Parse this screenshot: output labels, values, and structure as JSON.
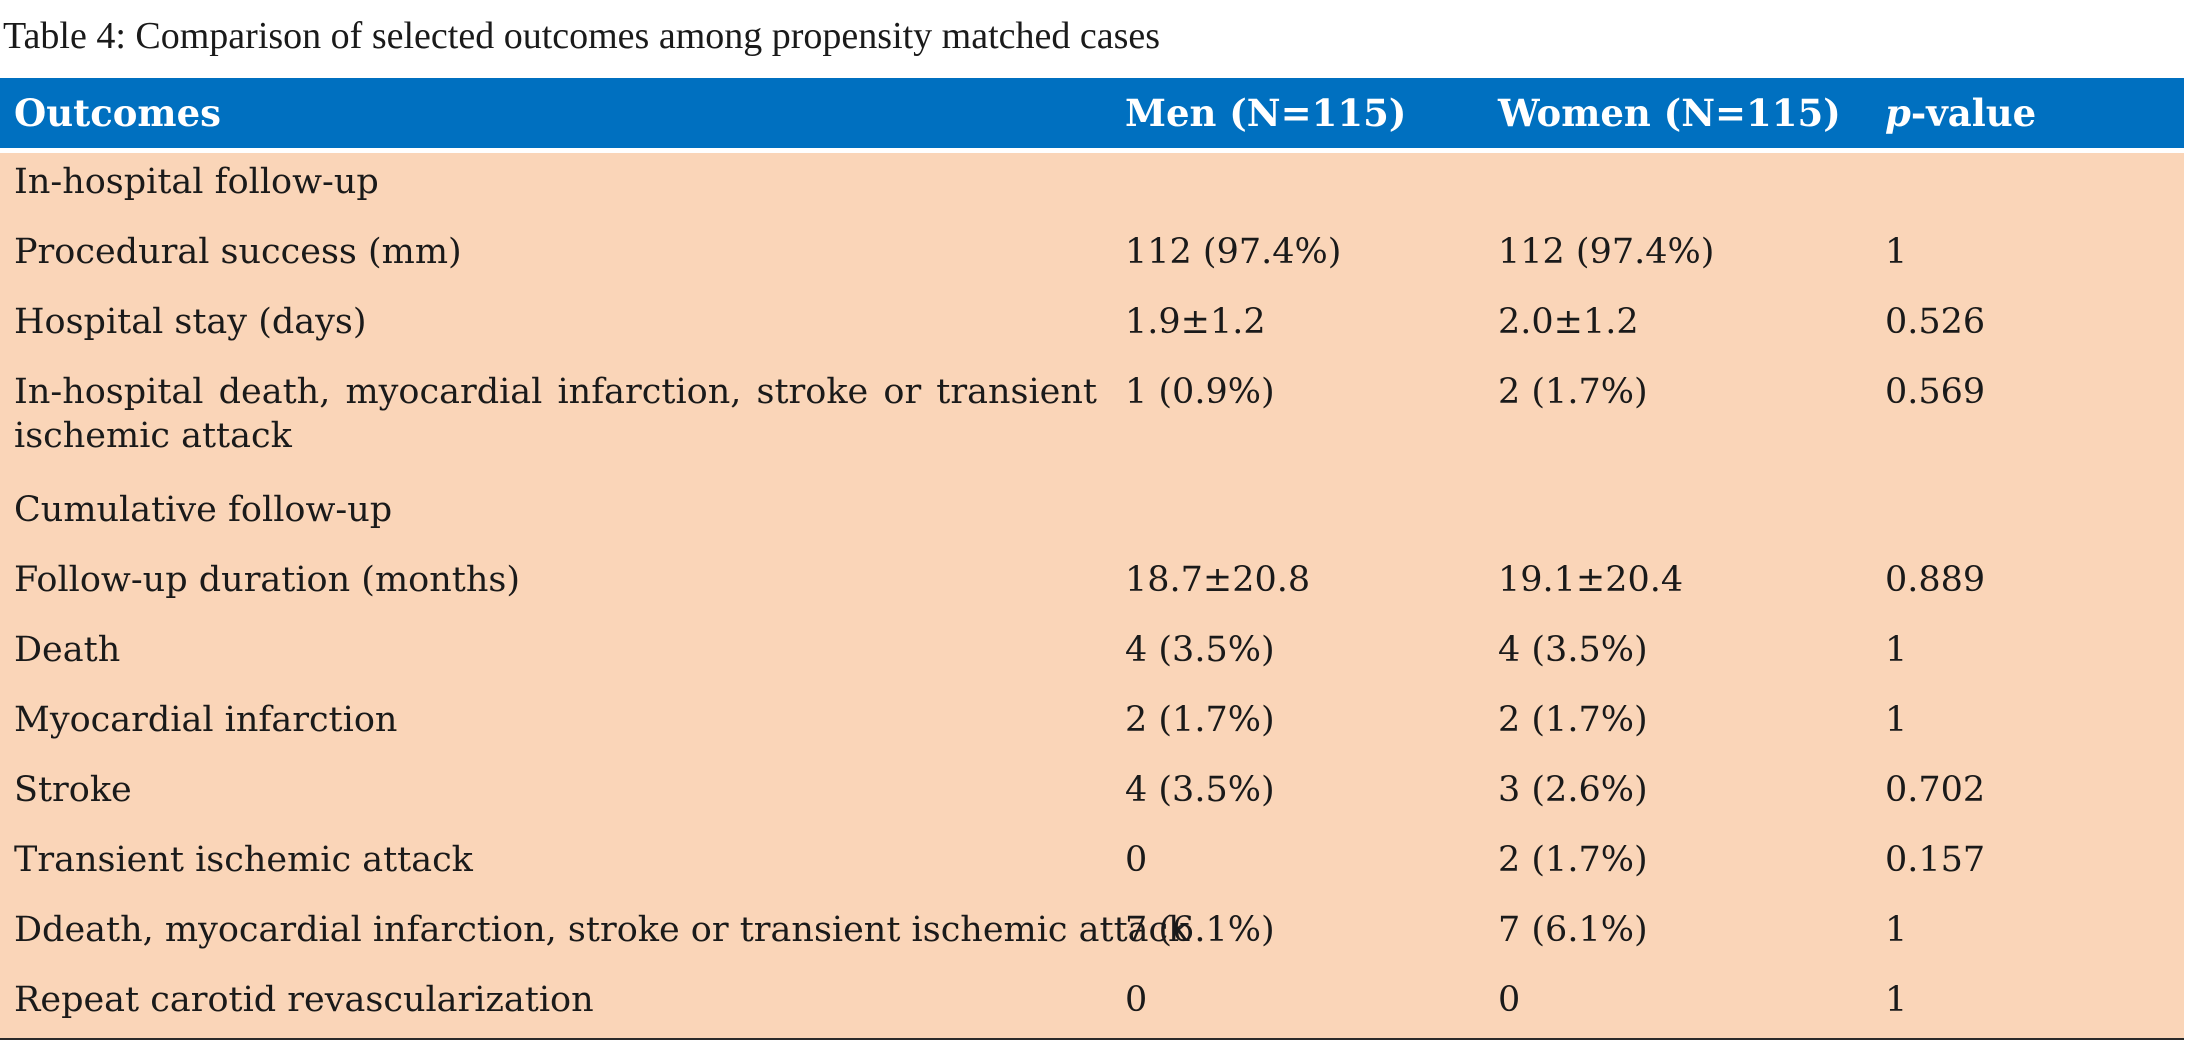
{
  "caption": "Table 4: Comparison of selected outcomes among propensity matched cases",
  "header": {
    "col0": "Outcomes",
    "col1": "Men (N=115)",
    "col2": "Women (N=115)",
    "col3_italic": "p",
    "col3_rest": "-value"
  },
  "rows": [
    {
      "outcome": "In-hospital follow-up",
      "men": "",
      "women": "",
      "p": ""
    },
    {
      "outcome": "Procedural success (mm)",
      "men": "112 (97.4%)",
      "women": "112 (97.4%)",
      "p": "1"
    },
    {
      "outcome": "Hospital stay (days)",
      "men": "1.9±1.2",
      "women": "2.0±1.2",
      "p": "0.526"
    },
    {
      "outcome": "In-hospital death, myocardial infarction, stroke or transient ischemic attack",
      "men": "1 (0.9%)",
      "women": "2 (1.7%)",
      "p": "0.569"
    },
    {
      "outcome": "Cumulative follow-up",
      "men": "",
      "women": "",
      "p": ""
    },
    {
      "outcome": "Follow-up duration (months)",
      "men": "18.7±20.8",
      "women": "19.1±20.4",
      "p": "0.889"
    },
    {
      "outcome": "Death",
      "men": "4 (3.5%)",
      "women": "4 (3.5%)",
      "p": "1"
    },
    {
      "outcome": "Myocardial infarction",
      "men": "2 (1.7%)",
      "women": "2 (1.7%)",
      "p": "1"
    },
    {
      "outcome": "Stroke",
      "men": "4 (3.5%)",
      "women": "3 (2.6%)",
      "p": "0.702"
    },
    {
      "outcome": "Transient ischemic attack",
      "men": "0",
      "women": "2 (1.7%)",
      "p": "0.157"
    },
    {
      "outcome": "Ddeath, myocardial infarction, stroke or transient ischemic attack",
      "men": "7 (6.1%)",
      "women": "7 (6.1%)",
      "p": "1"
    },
    {
      "outcome": "Repeat carotid revascularization",
      "men": "0",
      "women": "0",
      "p": "1"
    }
  ],
  "colors": {
    "header_bg": "#0070c0",
    "body_bg": "#fad5b8",
    "header_text": "#ffffff"
  }
}
